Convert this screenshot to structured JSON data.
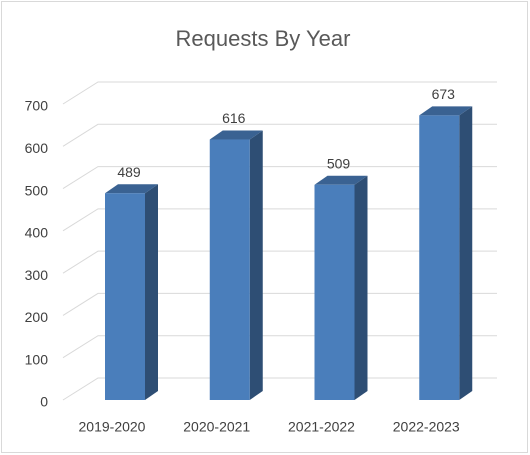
{
  "chart_data": {
    "type": "bar",
    "title": "Requests By Year",
    "categories": [
      "2019-2020",
      "2020-2021",
      "2021-2022",
      "2022-2023"
    ],
    "values": [
      489,
      616,
      509,
      673
    ],
    "color": "#4a7ebb",
    "ylim": [
      0,
      700
    ],
    "yticks": [
      0,
      100,
      200,
      300,
      400,
      500,
      600,
      700
    ],
    "grid": true
  }
}
